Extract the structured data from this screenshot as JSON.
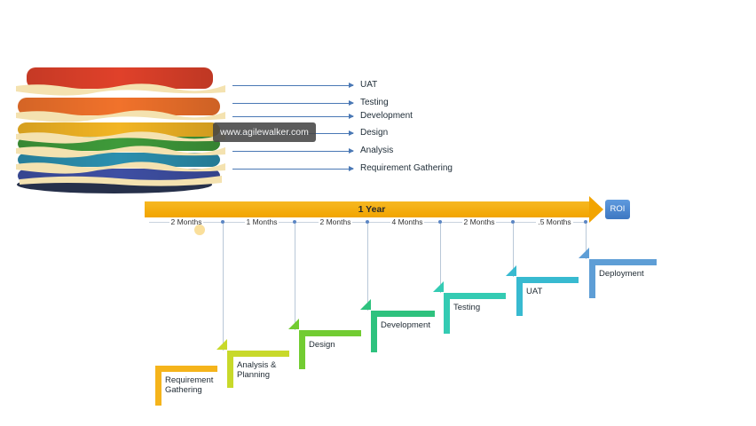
{
  "cake_layers": [
    {
      "label": "UAT",
      "color": "#e0412a"
    },
    {
      "label": "Testing",
      "color": "#f1722b"
    },
    {
      "label": "Development",
      "color": "#f2b524"
    },
    {
      "label": "Design",
      "color": "#3f9a3a"
    },
    {
      "label": "Analysis",
      "color": "#2b8fae"
    },
    {
      "label": "Requirement Gathering",
      "color": "#3e4fa3"
    }
  ],
  "watermark": "www.agilewalker.com",
  "timeline": {
    "label": "1 Year",
    "end_label": "ROI",
    "bar_color": "#f2a400",
    "roi_color": "#4a86cf",
    "durations": [
      "2 Months",
      "1 Months",
      "2 Months",
      "4 Months",
      "2 Months",
      ".5 Months"
    ]
  },
  "phases": [
    {
      "label_lines": [
        "Requirement",
        "Gathering"
      ],
      "color": "#f5b41b"
    },
    {
      "label_lines": [
        "Analysis &",
        "Planning"
      ],
      "color": "#c8d92a"
    },
    {
      "label_lines": [
        "Design"
      ],
      "color": "#72cc32"
    },
    {
      "label_lines": [
        "Development"
      ],
      "color": "#2ec27e"
    },
    {
      "label_lines": [
        "Testing"
      ],
      "color": "#34cbb3"
    },
    {
      "label_lines": [
        "UAT"
      ],
      "color": "#38bad0"
    },
    {
      "label_lines": [
        "Deployment"
      ],
      "color": "#5e9ed6"
    }
  ]
}
